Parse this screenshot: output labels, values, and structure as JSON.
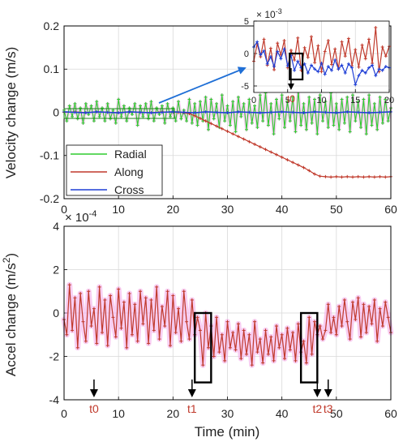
{
  "chart_data": [
    {
      "type": "line",
      "panel": "top",
      "ylabel": "Velocity change (m/s)",
      "xlim": [
        0,
        60
      ],
      "ylim": [
        -0.2,
        0.2
      ],
      "xticks": [
        "0",
        "10",
        "20",
        "30",
        "40",
        "50",
        "60"
      ],
      "yticks": [
        "-0.2",
        "-0.1",
        "0",
        "0.1",
        "0.2"
      ],
      "legend_location": "lower-left",
      "series": [
        {
          "name": "Radial",
          "color": "#2ecc2e",
          "x": [
            0,
            0.5,
            1,
            1.5,
            2,
            2.5,
            3,
            3.5,
            4,
            4.5,
            5,
            5.5,
            6,
            6.5,
            7,
            7.5,
            8,
            8.5,
            9,
            9.5,
            10,
            10.5,
            11,
            11.5,
            12,
            12.5,
            13,
            13.5,
            14,
            14.5,
            15,
            15.5,
            16,
            16.5,
            17,
            17.5,
            18,
            18.5,
            19,
            19.5,
            20,
            20.5,
            21,
            21.5,
            22,
            22.5,
            23,
            23.5,
            24,
            24.5,
            25,
            25.5,
            26,
            26.5,
            27,
            27.5,
            28,
            28.5,
            29,
            29.5,
            30,
            30.5,
            31,
            31.5,
            32,
            32.5,
            33,
            33.5,
            34,
            34.5,
            35,
            35.5,
            36,
            36.5,
            37,
            37.5,
            38,
            38.5,
            39,
            39.5,
            40,
            40.5,
            41,
            41.5,
            42,
            42.5,
            43,
            43.5,
            44,
            44.5,
            45,
            45.5,
            46,
            46.5,
            47,
            47.5,
            48,
            48.5,
            49,
            49.5,
            50,
            50.5,
            51,
            51.5,
            52,
            52.5,
            53,
            53.5,
            54,
            54.5,
            55,
            55.5,
            56,
            56.5,
            57,
            57.5,
            58,
            58.5,
            59,
            59.5,
            60
          ],
          "y": [
            0.005,
            -0.02,
            0.015,
            -0.01,
            0.02,
            -0.015,
            0.01,
            -0.025,
            0.02,
            -0.005,
            0.015,
            -0.02,
            0.025,
            -0.01,
            0.01,
            -0.02,
            0.02,
            -0.015,
            0.005,
            -0.025,
            0.03,
            -0.01,
            0.015,
            -0.02,
            0.01,
            -0.005,
            0.02,
            -0.03,
            0.015,
            -0.01,
            0.02,
            -0.015,
            0.025,
            -0.02,
            0.01,
            -0.005,
            0.015,
            -0.025,
            0.02,
            -0.01,
            0.01,
            -0.02,
            0.025,
            -0.015,
            0.005,
            -0.02,
            0.03,
            -0.025,
            0.02,
            -0.03,
            0.025,
            -0.02,
            0.035,
            -0.04,
            0.03,
            -0.015,
            0.02,
            -0.035,
            0.04,
            -0.02,
            0.015,
            -0.03,
            0.025,
            -0.045,
            0.035,
            -0.01,
            0.02,
            -0.04,
            0.03,
            -0.025,
            0.015,
            -0.035,
            0.04,
            -0.02,
            0.045,
            -0.03,
            0.02,
            -0.05,
            0.03,
            -0.015,
            0.04,
            -0.035,
            0.025,
            -0.02,
            0.035,
            -0.045,
            0.05,
            -0.03,
            0.02,
            -0.04,
            0.035,
            -0.025,
            0.03,
            -0.05,
            0.04,
            -0.02,
            0.025,
            -0.035,
            0.045,
            -0.03,
            0.02,
            -0.04,
            0.03,
            -0.025,
            0.035,
            -0.045,
            0.04,
            -0.02,
            0.025,
            -0.035,
            0.03,
            -0.05,
            0.04,
            -0.03,
            0.02,
            -0.04,
            0.035,
            -0.025,
            0.03,
            -0.02,
            0.01
          ]
        },
        {
          "name": "Along",
          "color": "#c0392b",
          "x": [
            0,
            2,
            4,
            6,
            8,
            10,
            12,
            14,
            16,
            18,
            20,
            21,
            22,
            23,
            24,
            25,
            26,
            27,
            28,
            29,
            30,
            31,
            32,
            33,
            34,
            35,
            36,
            37,
            38,
            39,
            40,
            41,
            42,
            43,
            44,
            45,
            46,
            47,
            48,
            49,
            50,
            51,
            52,
            53,
            54,
            55,
            56,
            57,
            58,
            59,
            60
          ],
          "y": [
            0,
            0.001,
            -0.001,
            0.001,
            0,
            -0.001,
            0.001,
            0,
            -0.001,
            0.001,
            0,
            0,
            -0.001,
            -0.003,
            -0.008,
            -0.014,
            -0.02,
            -0.026,
            -0.032,
            -0.038,
            -0.044,
            -0.05,
            -0.056,
            -0.062,
            -0.068,
            -0.074,
            -0.08,
            -0.086,
            -0.092,
            -0.098,
            -0.104,
            -0.11,
            -0.116,
            -0.122,
            -0.128,
            -0.135,
            -0.143,
            -0.148,
            -0.149,
            -0.15,
            -0.149,
            -0.15,
            -0.149,
            -0.15,
            -0.149,
            -0.15,
            -0.149,
            -0.15,
            -0.149,
            -0.15,
            -0.149
          ]
        },
        {
          "name": "Cross",
          "color": "#1f3fd6",
          "x": [
            0,
            2,
            4,
            6,
            8,
            10,
            12,
            14,
            16,
            18,
            20,
            22,
            24,
            26,
            28,
            30,
            32,
            34,
            36,
            38,
            40,
            42,
            44,
            46,
            48,
            50,
            52,
            54,
            56,
            58,
            60
          ],
          "y": [
            0.001,
            0,
            -0.001,
            0.001,
            0,
            -0.001,
            0.001,
            0,
            -0.001,
            0,
            0.001,
            0,
            -0.001,
            0.001,
            0,
            -0.001,
            0.001,
            0,
            -0.001,
            0,
            0.001,
            0,
            -0.001,
            0.001,
            0,
            -0.001,
            0.001,
            0,
            -0.001,
            0,
            0.001
          ]
        }
      ],
      "inset": {
        "exponent": "× 10^-3",
        "exp_label": "× 10",
        "exp_power": "-3",
        "xlim": [
          0,
          20
        ],
        "ylim": [
          -6,
          5
        ],
        "xticks": [
          "0",
          "5",
          "10",
          "15",
          "20"
        ],
        "yticks": [
          "-5",
          "0",
          "5"
        ],
        "annotation": "t0",
        "box": {
          "x": [
            5.3,
            7.2
          ],
          "y": [
            -4,
            0
          ]
        },
        "arrow_x": 5.5,
        "series": [
          {
            "name": "Along",
            "color": "#c0392b",
            "x": [
              0,
              0.5,
              1,
              1.5,
              2,
              2.5,
              3,
              3.5,
              4,
              4.5,
              5,
              5.5,
              6,
              6.5,
              7,
              7.5,
              8,
              8.5,
              9,
              9.5,
              10,
              10.5,
              11,
              11.5,
              12,
              12.5,
              13,
              13.5,
              14,
              14.5,
              15,
              15.5,
              16,
              16.5,
              17,
              17.5,
              18,
              18.5,
              19,
              19.5,
              20
            ],
            "y": [
              -1.2,
              1.5,
              -0.5,
              2.2,
              -1.8,
              0.8,
              -2.5,
              1.6,
              -0.2,
              2.0,
              -2.2,
              0.5,
              -1.0,
              2.4,
              -2.6,
              0.9,
              -0.6,
              2.6,
              -1.4,
              1.2,
              -2.8,
              0.3,
              2.0,
              -1.7,
              0.7,
              -2.4,
              1.8,
              -0.4,
              2.3,
              -1.9,
              0.6,
              -2.1,
              1.3,
              -0.8,
              2.2,
              -1.5,
              4.0,
              -2.8,
              1.0,
              -0.4,
              1.1
            ]
          },
          {
            "name": "Cross",
            "color": "#1f3fd6",
            "x": [
              0,
              0.5,
              1,
              1.5,
              2,
              2.5,
              3,
              3.5,
              4,
              4.5,
              5,
              5.5,
              6,
              6.5,
              7,
              7.5,
              8,
              8.5,
              9,
              9.5,
              10,
              10.5,
              11,
              11.5,
              12,
              12.5,
              13,
              13.5,
              14,
              14.5,
              15,
              15.5,
              16,
              16.5,
              17,
              17.5,
              18,
              18.5,
              19,
              19.5,
              20
            ],
            "y": [
              1.0,
              1.8,
              -0.2,
              0.4,
              -1.6,
              -0.5,
              -2.0,
              0.3,
              -0.8,
              0.7,
              -1.9,
              -0.3,
              -2.6,
              -1.2,
              -2.2,
              -1.6,
              -3.0,
              -1.8,
              -2.4,
              -2.8,
              -1.5,
              -3.2,
              -2.0,
              -2.6,
              -1.0,
              -2.4,
              -1.8,
              -3.0,
              -1.6,
              -2.2,
              -4.8,
              -3.4,
              -2.6,
              -3.0,
              -2.2,
              -1.8,
              -3.4,
              -2.4,
              -2.6,
              -2.0,
              -2.2
            ]
          }
        ]
      }
    },
    {
      "type": "line",
      "panel": "bottom",
      "exponent": "× 10^-4",
      "exp_label": "× 10",
      "exp_power": "-4",
      "xlabel": "Time (min)",
      "ylabel_main": "Accel change (m/s",
      "ylabel_sup": "2",
      "ylabel_close": ")",
      "xlim": [
        0,
        60
      ],
      "ylim": [
        -4,
        4
      ],
      "xticks": [
        "0",
        "10",
        "20",
        "30",
        "40",
        "50",
        "60"
      ],
      "yticks": [
        "-4",
        "-2",
        "0",
        "2",
        "4"
      ],
      "series": [
        {
          "name": "Accel",
          "color": "#c0392b",
          "x": [
            0,
            0.5,
            1,
            1.5,
            2,
            2.5,
            3,
            3.5,
            4,
            4.5,
            5,
            5.5,
            6,
            6.5,
            7,
            7.5,
            8,
            8.5,
            9,
            9.5,
            10,
            10.5,
            11,
            11.5,
            12,
            12.5,
            13,
            13.5,
            14,
            14.5,
            15,
            15.5,
            16,
            16.5,
            17,
            17.5,
            18,
            18.5,
            19,
            19.5,
            20,
            20.5,
            21,
            21.5,
            22,
            22.5,
            23,
            23.5,
            24,
            24.5,
            25,
            25.5,
            26,
            26.5,
            27,
            27.5,
            28,
            28.5,
            29,
            29.5,
            30,
            30.5,
            31,
            31.5,
            32,
            32.5,
            33,
            33.5,
            34,
            34.5,
            35,
            35.5,
            36,
            36.5,
            37,
            37.5,
            38,
            38.5,
            39,
            39.5,
            40,
            40.5,
            41,
            41.5,
            42,
            42.5,
            43,
            43.5,
            44,
            44.5,
            45,
            45.5,
            46,
            46.5,
            47,
            47.5,
            48,
            48.5,
            49,
            49.5,
            50,
            50.5,
            51,
            51.5,
            52,
            52.5,
            53,
            53.5,
            54,
            54.5,
            55,
            55.5,
            56,
            56.5,
            57,
            57.5,
            58,
            58.5,
            59,
            59.5,
            60
          ],
          "y": [
            -0.3,
            -1.0,
            1.3,
            -0.8,
            0.7,
            -1.6,
            0.9,
            -0.4,
            -1.3,
            1.0,
            -0.6,
            0.2,
            -1.4,
            1.2,
            -0.9,
            0.6,
            -1.5,
            0.8,
            -0.2,
            -1.1,
            1.1,
            -0.7,
            0.5,
            -1.6,
            0.9,
            -1.0,
            0.4,
            -1.3,
            1.0,
            -0.5,
            0.7,
            -1.4,
            0.6,
            -0.8,
            1.2,
            -1.2,
            0.3,
            -0.6,
            1.0,
            -1.5,
            0.8,
            -0.9,
            0.2,
            -1.3,
            1.0,
            -0.4,
            -1.2,
            0.6,
            -1.0,
            -0.2,
            -0.8,
            -2.4,
            0.0,
            -1.6,
            -0.6,
            -2.0,
            -0.2,
            -1.8,
            -1.0,
            -2.2,
            -0.4,
            -1.6,
            -0.9,
            -1.7,
            -0.5,
            -2.1,
            -0.8,
            -1.9,
            -1.0,
            -2.4,
            -0.4,
            -1.8,
            -1.2,
            -2.3,
            -0.8,
            -1.9,
            -1.1,
            -2.2,
            -0.6,
            -1.6,
            -1.0,
            -2.1,
            -0.7,
            -1.7,
            -0.9,
            -2.2,
            -0.5,
            -1.8,
            -1.3,
            -2.3,
            -0.2,
            -1.9,
            -0.4,
            -1.0,
            -0.6,
            -1.2,
            -0.8,
            0.4,
            -0.9,
            -0.2,
            -1.0,
            0.3,
            -0.6,
            0.6,
            -0.4,
            -1.2,
            0.5,
            -0.3,
            0.7,
            -1.1,
            0.4,
            -0.9,
            0.3,
            -0.5,
            0.6,
            -1.3,
            0.2,
            -0.6,
            0.5,
            -0.2,
            -0.9
          ]
        }
      ],
      "boxes": [
        {
          "x": [
            24,
            27
          ],
          "y": [
            -3.2,
            0
          ]
        },
        {
          "x": [
            43.5,
            46.5
          ],
          "y": [
            -3.2,
            0
          ]
        }
      ],
      "markers": [
        {
          "label": "t0",
          "x": 5.5
        },
        {
          "label": "t1",
          "x": 23.5
        },
        {
          "label": "t2",
          "x": 46.5
        },
        {
          "label": "t3",
          "x": 48.5
        }
      ]
    }
  ]
}
